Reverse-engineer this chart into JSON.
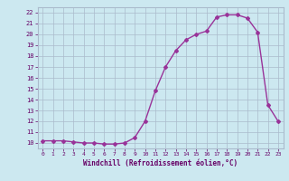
{
  "x": [
    0,
    1,
    2,
    3,
    4,
    5,
    6,
    7,
    8,
    9,
    10,
    11,
    12,
    13,
    14,
    15,
    16,
    17,
    18,
    19,
    20,
    21,
    22,
    23
  ],
  "y": [
    10.2,
    10.2,
    10.2,
    10.1,
    10.0,
    10.0,
    9.9,
    9.9,
    10.0,
    10.5,
    12.0,
    14.8,
    17.0,
    18.5,
    19.5,
    20.0,
    20.3,
    21.6,
    21.8,
    21.8,
    21.5,
    20.2,
    13.5,
    12.0
  ],
  "xlabel": "Windchill (Refroidissement éolien,°C)",
  "ylim": [
    9.5,
    22.5
  ],
  "xlim": [
    -0.5,
    23.5
  ],
  "yticks": [
    10,
    11,
    12,
    13,
    14,
    15,
    16,
    17,
    18,
    19,
    20,
    21,
    22
  ],
  "xticks": [
    0,
    1,
    2,
    3,
    4,
    5,
    6,
    7,
    8,
    9,
    10,
    11,
    12,
    13,
    14,
    15,
    16,
    17,
    18,
    19,
    20,
    21,
    22,
    23
  ],
  "line_color": "#993399",
  "marker": "D",
  "marker_size": 2.0,
  "bg_color": "#cce8f0",
  "grid_color": "#aabbcc",
  "tick_label_color": "#660066",
  "axis_label_color": "#660066",
  "line_width": 1.0
}
